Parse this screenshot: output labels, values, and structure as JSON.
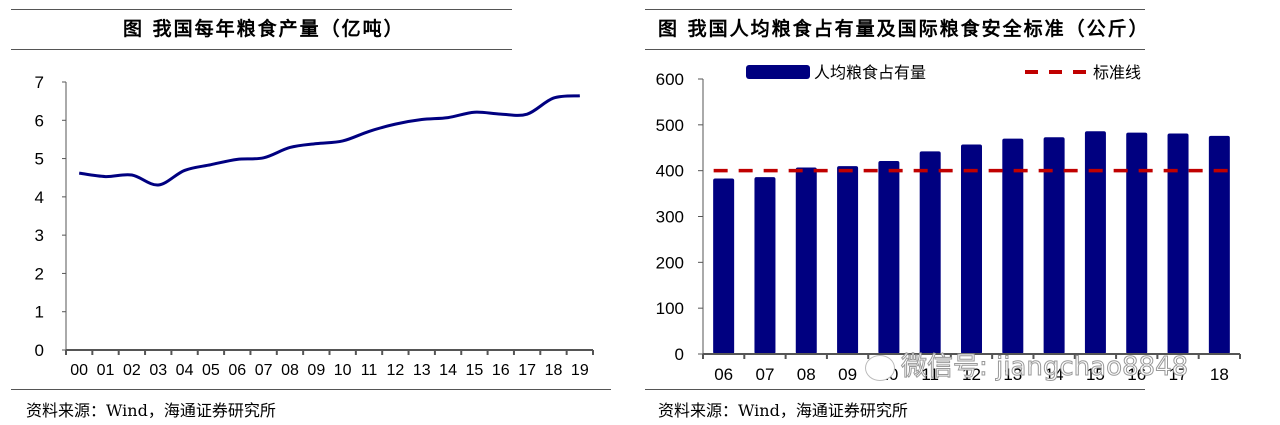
{
  "left_panel": {
    "title": "图  我国每年粮食产量（亿吨）",
    "source": "资料来源：Wind，海通证券研究所"
  },
  "right_panel": {
    "title": "图  我国人均粮食占有量及国际粮食安全标准（公斤）",
    "source": "资料来源：Wind，海通证券研究所",
    "watermark": "微信号: jiangchao8848"
  },
  "chart_data": [
    {
      "type": "line",
      "title": "我国每年粮食产量（亿吨）",
      "xlabel": "",
      "ylabel": "",
      "ylim": [
        0,
        7
      ],
      "yticks": [
        0,
        1,
        2,
        3,
        4,
        5,
        6,
        7
      ],
      "grid": false,
      "categories": [
        "00",
        "01",
        "02",
        "03",
        "04",
        "05",
        "06",
        "07",
        "08",
        "09",
        "10",
        "11",
        "12",
        "13",
        "14",
        "15",
        "16",
        "17",
        "18",
        "19"
      ],
      "series": [
        {
          "name": "粮食产量",
          "color": "#000080",
          "values": [
            4.62,
            4.53,
            4.57,
            4.31,
            4.69,
            4.84,
            4.98,
            5.02,
            5.29,
            5.39,
            5.46,
            5.71,
            5.9,
            6.02,
            6.07,
            6.21,
            6.16,
            6.16,
            6.58,
            6.64
          ]
        }
      ],
      "legend": null
    },
    {
      "type": "bar",
      "title": "我国人均粮食占有量及国际粮食安全标准（公斤）",
      "xlabel": "",
      "ylabel": "",
      "ylim": [
        0,
        600
      ],
      "yticks": [
        0,
        100,
        200,
        300,
        400,
        500,
        600
      ],
      "grid": false,
      "categories": [
        "06",
        "07",
        "08",
        "09",
        "10",
        "11",
        "12",
        "13",
        "14",
        "15",
        "16",
        "17",
        "18"
      ],
      "series": [
        {
          "name": "人均粮食占有量",
          "type": "bar",
          "color": "#000080",
          "values": [
            383,
            386,
            407,
            410,
            421,
            442,
            457,
            470,
            473,
            486,
            483,
            481,
            476
          ]
        },
        {
          "name": "标准线",
          "type": "line-dashed",
          "color": "#C00000",
          "values": [
            400,
            400,
            400,
            400,
            400,
            400,
            400,
            400,
            400,
            400,
            400,
            400,
            400
          ]
        }
      ],
      "legend_position": "top"
    }
  ]
}
